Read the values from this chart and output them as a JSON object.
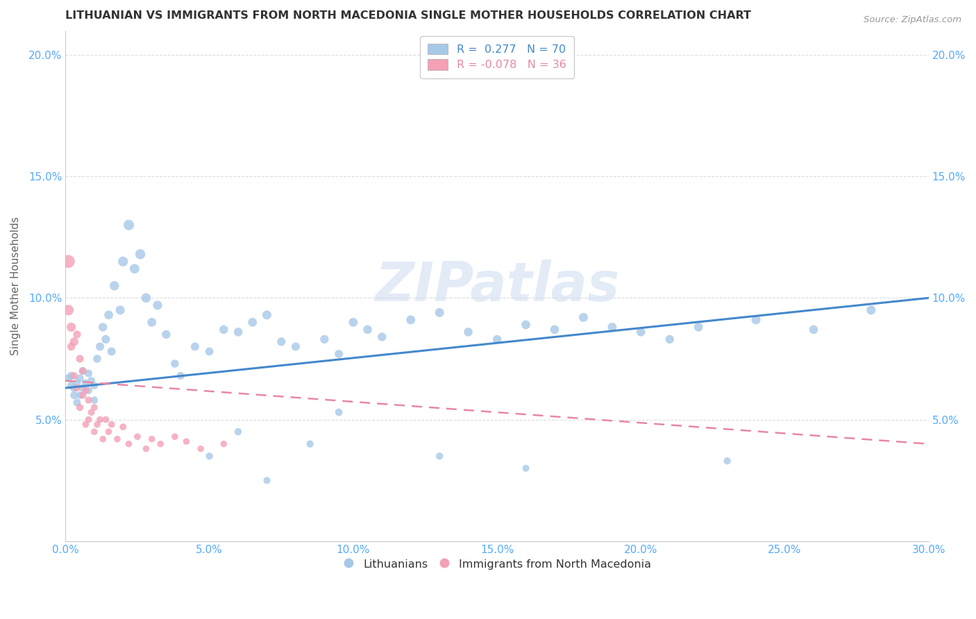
{
  "title": "LITHUANIAN VS IMMIGRANTS FROM NORTH MACEDONIA SINGLE MOTHER HOUSEHOLDS CORRELATION CHART",
  "source": "Source: ZipAtlas.com",
  "ylabel": "Single Mother Households",
  "xlim": [
    0.0,
    0.3
  ],
  "ylim": [
    0.0,
    0.21
  ],
  "watermark": "ZIPatlas",
  "blue_color": "#a8c8e8",
  "pink_color": "#f4a0b5",
  "trend_blue": "#4488cc",
  "trend_pink": "#e888a0",
  "R_blue": 0.277,
  "N_blue": 70,
  "R_pink": -0.078,
  "N_pink": 36,
  "background_color": "#ffffff",
  "grid_color": "#dddddd",
  "tick_color": "#55aaff",
  "title_color": "#333333",
  "ylabel_color": "#666666",
  "source_color": "#999999",
  "blue_trend_start_y": 0.063,
  "blue_trend_end_y": 0.1,
  "pink_trend_start_y": 0.066,
  "pink_trend_end_y": 0.04,
  "blue_x": [
    0.001,
    0.002,
    0.002,
    0.003,
    0.003,
    0.004,
    0.004,
    0.005,
    0.005,
    0.006,
    0.006,
    0.007,
    0.008,
    0.008,
    0.009,
    0.01,
    0.01,
    0.011,
    0.012,
    0.013,
    0.014,
    0.015,
    0.016,
    0.017,
    0.019,
    0.02,
    0.022,
    0.024,
    0.026,
    0.028,
    0.03,
    0.032,
    0.035,
    0.038,
    0.04,
    0.045,
    0.05,
    0.055,
    0.06,
    0.065,
    0.07,
    0.075,
    0.08,
    0.09,
    0.095,
    0.1,
    0.105,
    0.11,
    0.12,
    0.13,
    0.14,
    0.15,
    0.16,
    0.17,
    0.18,
    0.19,
    0.2,
    0.21,
    0.22,
    0.24,
    0.26,
    0.28,
    0.05,
    0.06,
    0.07,
    0.085,
    0.095,
    0.13,
    0.16,
    0.23
  ],
  "blue_y": [
    0.067,
    0.064,
    0.068,
    0.06,
    0.063,
    0.057,
    0.065,
    0.06,
    0.067,
    0.063,
    0.07,
    0.065,
    0.062,
    0.069,
    0.066,
    0.058,
    0.064,
    0.075,
    0.08,
    0.088,
    0.083,
    0.093,
    0.078,
    0.105,
    0.095,
    0.115,
    0.13,
    0.112,
    0.118,
    0.1,
    0.09,
    0.097,
    0.085,
    0.073,
    0.068,
    0.08,
    0.078,
    0.087,
    0.086,
    0.09,
    0.093,
    0.082,
    0.08,
    0.083,
    0.077,
    0.09,
    0.087,
    0.084,
    0.091,
    0.094,
    0.086,
    0.083,
    0.089,
    0.087,
    0.092,
    0.088,
    0.086,
    0.083,
    0.088,
    0.091,
    0.087,
    0.095,
    0.035,
    0.045,
    0.025,
    0.04,
    0.053,
    0.035,
    0.03,
    0.033
  ],
  "pink_x": [
    0.001,
    0.001,
    0.002,
    0.002,
    0.003,
    0.003,
    0.004,
    0.004,
    0.005,
    0.005,
    0.006,
    0.006,
    0.007,
    0.007,
    0.008,
    0.008,
    0.009,
    0.01,
    0.01,
    0.011,
    0.012,
    0.013,
    0.014,
    0.015,
    0.016,
    0.018,
    0.02,
    0.022,
    0.025,
    0.028,
    0.03,
    0.033,
    0.038,
    0.042,
    0.047,
    0.055
  ],
  "pink_y": [
    0.115,
    0.095,
    0.088,
    0.08,
    0.082,
    0.068,
    0.085,
    0.063,
    0.075,
    0.055,
    0.07,
    0.06,
    0.062,
    0.048,
    0.058,
    0.05,
    0.053,
    0.055,
    0.045,
    0.048,
    0.05,
    0.042,
    0.05,
    0.045,
    0.048,
    0.042,
    0.047,
    0.04,
    0.043,
    0.038,
    0.042,
    0.04,
    0.043,
    0.041,
    0.038,
    0.04
  ],
  "pink_sizes": [
    180,
    120,
    90,
    70,
    80,
    60,
    65,
    55,
    65,
    55,
    60,
    55,
    55,
    50,
    55,
    50,
    50,
    50,
    48,
    48,
    50,
    48,
    50,
    48,
    50,
    48,
    50,
    48,
    48,
    46,
    48,
    46,
    48,
    46,
    46,
    46
  ],
  "blue_sizes": [
    70,
    65,
    68,
    65,
    68,
    63,
    65,
    62,
    65,
    62,
    65,
    62,
    60,
    63,
    62,
    58,
    61,
    70,
    75,
    80,
    78,
    85,
    75,
    95,
    88,
    105,
    118,
    100,
    108,
    95,
    85,
    90,
    80,
    70,
    65,
    75,
    73,
    82,
    82,
    85,
    88,
    78,
    76,
    78,
    73,
    85,
    82,
    80,
    86,
    89,
    82,
    79,
    85,
    83,
    87,
    84,
    82,
    79,
    84,
    87,
    83,
    90,
    55,
    58,
    53,
    55,
    60,
    54,
    52,
    55
  ]
}
